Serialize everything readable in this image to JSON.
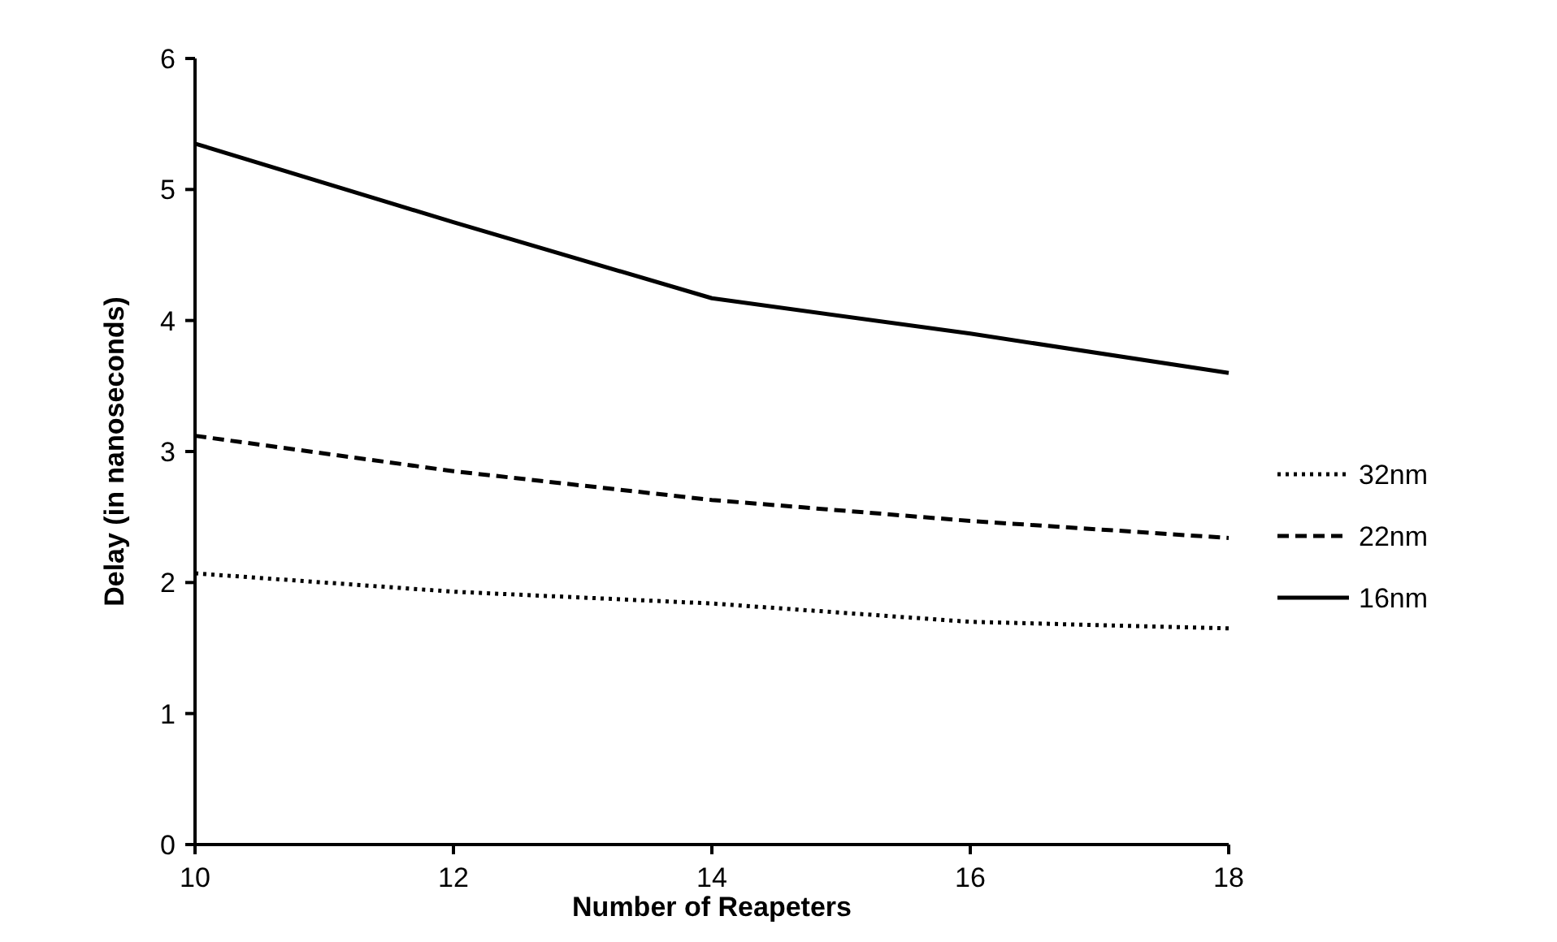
{
  "chart_data": {
    "type": "line",
    "xlabel": "Number of Reapeters",
    "ylabel": "Delay (in nanoseconds)",
    "x": [
      10,
      12,
      14,
      16,
      18
    ],
    "xlim": [
      10,
      18
    ],
    "xticks": [
      10,
      12,
      14,
      16,
      18
    ],
    "ylim": [
      0,
      6
    ],
    "yticks": [
      0,
      1,
      2,
      3,
      4,
      5,
      6
    ],
    "legend": "right",
    "grid": false,
    "series": [
      {
        "name": "32nm",
        "color": "#000000",
        "line_style": "dotted",
        "values": [
          2.07,
          1.93,
          1.84,
          1.7,
          1.65
        ]
      },
      {
        "name": "22nm",
        "color": "#000000",
        "line_style": "dashed",
        "values": [
          3.12,
          2.85,
          2.63,
          2.47,
          2.34
        ]
      },
      {
        "name": "16nm",
        "color": "#000000",
        "line_style": "solid",
        "values": [
          5.35,
          4.75,
          4.17,
          3.9,
          3.6
        ]
      }
    ]
  }
}
